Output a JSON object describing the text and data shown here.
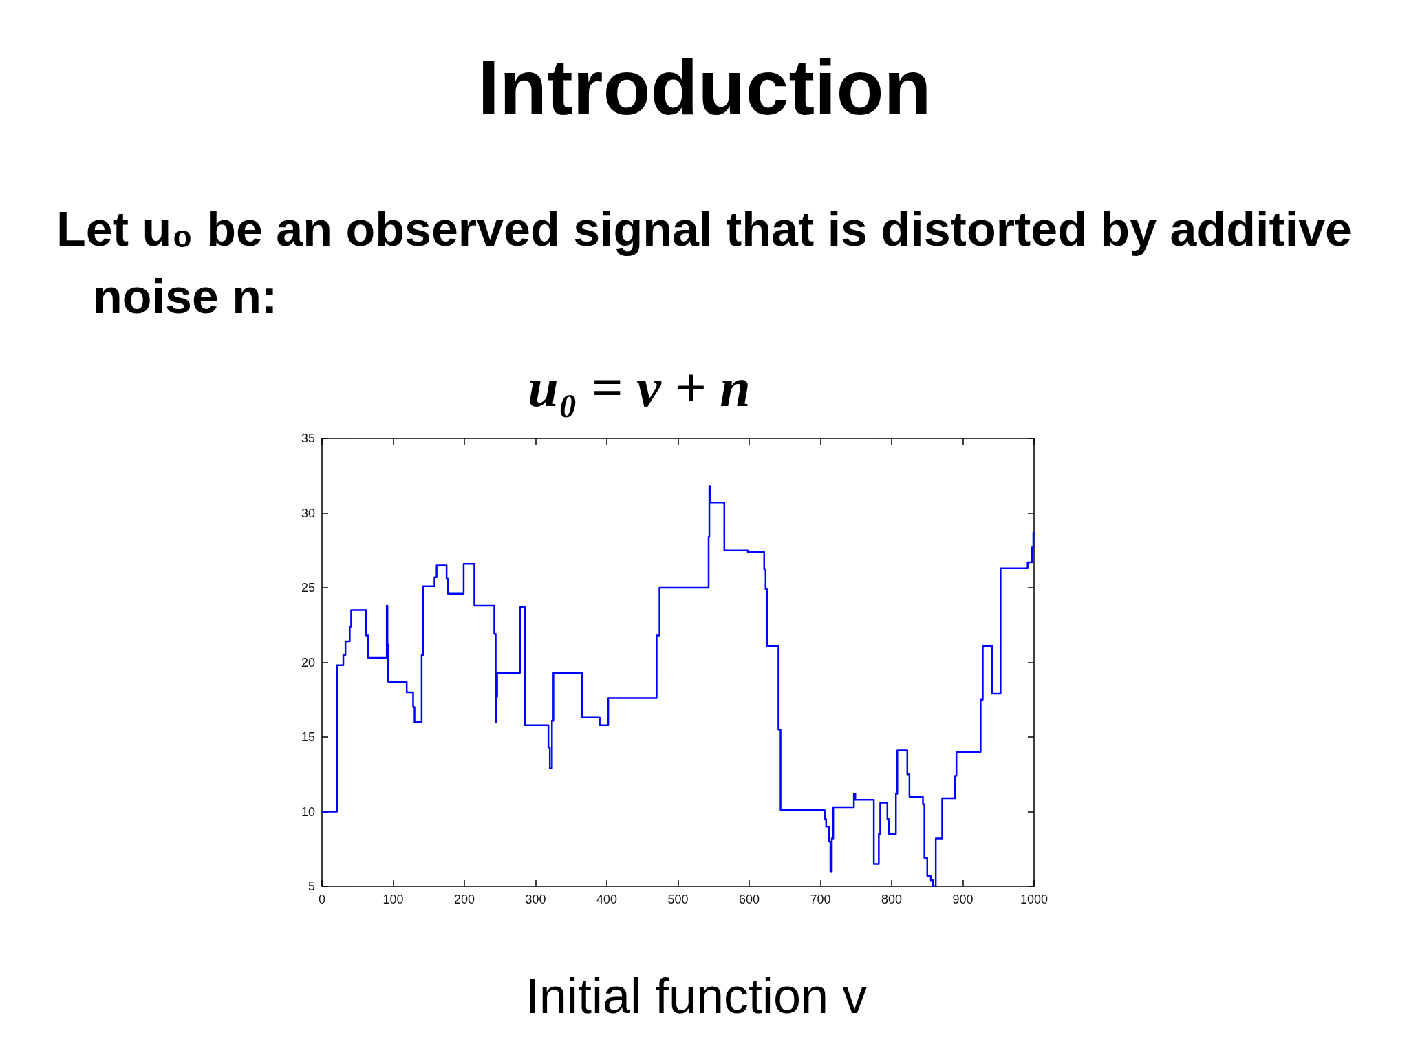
{
  "chart_data": {
    "type": "step",
    "title": "Introduction",
    "subtitle": "Let u₀ be an observed signal that is distorted by additive noise n:",
    "annotations": [
      "u₀ = v + n",
      "Initial function v"
    ],
    "color": "#0000ff",
    "x": [
      0,
      21,
      30,
      33,
      39,
      41,
      62,
      65,
      91,
      92,
      93,
      119,
      128,
      130,
      140,
      142,
      158,
      161,
      175,
      177,
      199,
      214,
      242,
      244,
      245,
      246,
      278,
      285,
      318,
      320,
      323,
      325,
      365,
      390,
      402,
      470,
      474,
      543,
      544,
      545,
      565,
      598,
      621,
      623,
      625,
      641,
      644,
      706,
      708,
      712,
      714,
      716,
      718,
      747,
      749,
      775,
      782,
      784,
      794,
      796,
      806,
      808,
      822,
      825,
      844,
      846,
      850,
      855,
      858,
      862,
      871,
      889,
      891,
      925,
      928,
      941,
      953,
      991,
      997,
      999,
      1000
    ],
    "values": [
      10.0,
      19.8,
      20.5,
      21.4,
      22.4,
      23.5,
      21.8,
      20.3,
      23.8,
      21.2,
      18.7,
      18.0,
      17.0,
      16.0,
      20.5,
      25.1,
      25.7,
      26.5,
      25.6,
      24.6,
      26.6,
      23.8,
      21.9,
      16.0,
      17.7,
      19.3,
      23.7,
      15.8,
      14.3,
      12.9,
      16.1,
      19.3,
      16.3,
      15.8,
      17.6,
      21.8,
      25.0,
      28.4,
      31.8,
      30.7,
      27.5,
      27.4,
      26.2,
      24.9,
      21.1,
      15.5,
      10.1,
      9.5,
      9.0,
      8.0,
      6.0,
      8.2,
      10.3,
      11.2,
      10.8,
      6.5,
      8.5,
      10.6,
      9.5,
      8.5,
      11.2,
      14.1,
      12.5,
      11.0,
      10.5,
      6.9,
      5.7,
      5.4,
      5.0,
      8.2,
      10.9,
      12.4,
      14.0,
      17.5,
      21.1,
      17.9,
      26.3,
      26.7,
      27.7,
      28.7,
      28.7
    ],
    "xlim": [
      0,
      1000
    ],
    "xticks": [
      0,
      100,
      200,
      300,
      400,
      500,
      600,
      700,
      800,
      900,
      1000
    ],
    "ylim": [
      5,
      35
    ],
    "yticks": [
      5,
      10,
      15,
      20,
      25,
      30,
      35
    ]
  }
}
